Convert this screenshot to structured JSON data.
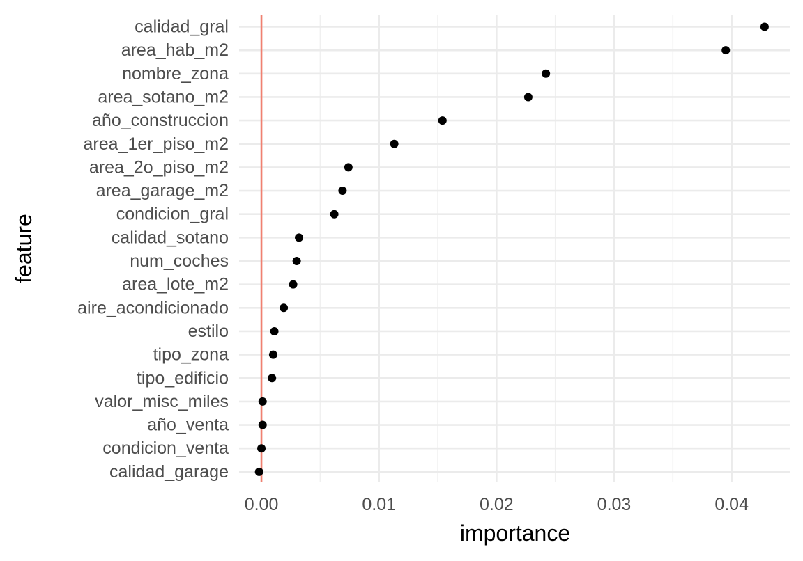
{
  "chart_data": {
    "type": "scatter",
    "xlabel": "importance",
    "ylabel": "feature",
    "xlim": [
      -0.0019,
      0.045
    ],
    "x_ticks": [
      0.0,
      0.01,
      0.02,
      0.03,
      0.04
    ],
    "x_tick_labels": [
      "0.00",
      "0.01",
      "0.02",
      "0.03",
      "0.04"
    ],
    "reference_line": {
      "x": 0.0,
      "color": "#f08070"
    },
    "grid": true,
    "point_color": "#000000",
    "points": [
      {
        "feature": "calidad_gral",
        "importance": 0.0428
      },
      {
        "feature": "area_hab_m2",
        "importance": 0.0395
      },
      {
        "feature": "nombre_zona",
        "importance": 0.0242
      },
      {
        "feature": "area_sotano_m2",
        "importance": 0.0227
      },
      {
        "feature": "año_construccion",
        "importance": 0.0154
      },
      {
        "feature": "area_1er_piso_m2",
        "importance": 0.0113
      },
      {
        "feature": "area_2o_piso_m2",
        "importance": 0.0074
      },
      {
        "feature": "area_garage_m2",
        "importance": 0.0069
      },
      {
        "feature": "condicion_gral",
        "importance": 0.0062
      },
      {
        "feature": "calidad_sotano",
        "importance": 0.0032
      },
      {
        "feature": "num_coches",
        "importance": 0.003
      },
      {
        "feature": "area_lote_m2",
        "importance": 0.0027
      },
      {
        "feature": "aire_acondicionado",
        "importance": 0.0019
      },
      {
        "feature": "estilo",
        "importance": 0.0011
      },
      {
        "feature": "tipo_zona",
        "importance": 0.001
      },
      {
        "feature": "tipo_edificio",
        "importance": 0.0009
      },
      {
        "feature": "valor_misc_miles",
        "importance": 0.0001
      },
      {
        "feature": "año_venta",
        "importance": 0.0001
      },
      {
        "feature": "condicion_venta",
        "importance": 0.0
      },
      {
        "feature": "calidad_garage",
        "importance": -0.0002
      }
    ]
  }
}
